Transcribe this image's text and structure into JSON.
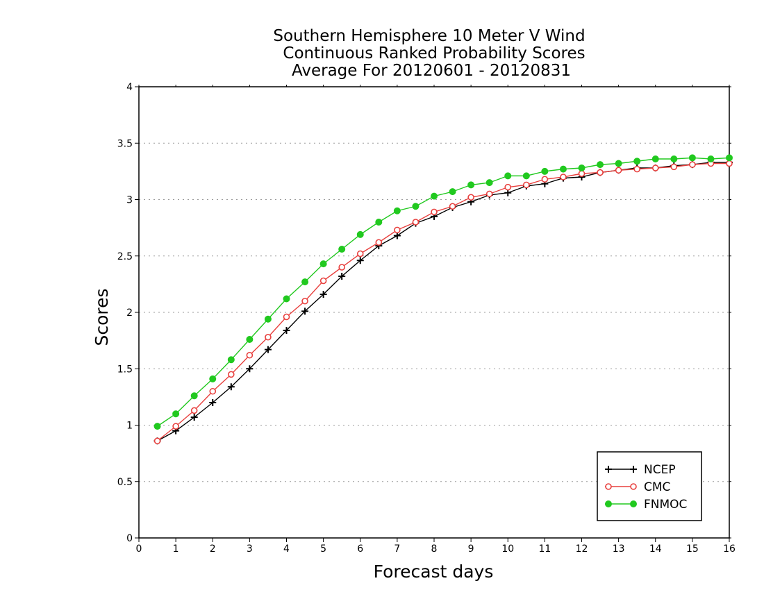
{
  "chart_data": {
    "type": "line",
    "title_lines": [
      "Southern Hemisphere 10 Meter V Wind",
      "Continuous Ranked Probability Scores",
      "Average For 20120601 - 20120831"
    ],
    "xlabel": "Forecast days",
    "ylabel": "Scores",
    "xlim": [
      0,
      16
    ],
    "ylim": [
      0,
      4
    ],
    "x_ticks": [
      "0",
      "1",
      "2",
      "3",
      "4",
      "5",
      "6",
      "7",
      "8",
      "9",
      "10",
      "11",
      "12",
      "13",
      "14",
      "15",
      "16"
    ],
    "y_ticks": [
      "0",
      "0.5",
      "1",
      "1.5",
      "2",
      "2.5",
      "3",
      "3.5",
      "4"
    ],
    "grid": "horizontal dotted",
    "legend_position": "bottom-right",
    "x": [
      0.5,
      1,
      1.5,
      2,
      2.5,
      3,
      3.5,
      4,
      4.5,
      5,
      5.5,
      6,
      6.5,
      7,
      7.5,
      8,
      8.5,
      9,
      9.5,
      10,
      10.5,
      11,
      11.5,
      12,
      12.5,
      13,
      13.5,
      14,
      14.5,
      15,
      15.5,
      16
    ],
    "series": [
      {
        "name": "NCEP",
        "color": "#000000",
        "marker": "plus",
        "values": [
          0.86,
          0.95,
          1.07,
          1.2,
          1.34,
          1.5,
          1.67,
          1.84,
          2.01,
          2.16,
          2.32,
          2.46,
          2.59,
          2.68,
          2.79,
          2.85,
          2.93,
          2.98,
          3.04,
          3.06,
          3.12,
          3.14,
          3.19,
          3.2,
          3.24,
          3.26,
          3.28,
          3.28,
          3.3,
          3.31,
          3.33,
          3.33
        ]
      },
      {
        "name": "CMC",
        "color": "#e8403e",
        "marker": "open-circle",
        "values": [
          0.86,
          0.99,
          1.13,
          1.3,
          1.45,
          1.62,
          1.78,
          1.96,
          2.1,
          2.28,
          2.4,
          2.52,
          2.62,
          2.73,
          2.8,
          2.89,
          2.94,
          3.02,
          3.05,
          3.11,
          3.13,
          3.18,
          3.2,
          3.23,
          3.24,
          3.26,
          3.27,
          3.28,
          3.29,
          3.31,
          3.32,
          3.32
        ]
      },
      {
        "name": "FNMOC",
        "color": "#21c91f",
        "marker": "filled-circle",
        "values": [
          0.99,
          1.1,
          1.26,
          1.41,
          1.58,
          1.76,
          1.94,
          2.12,
          2.27,
          2.43,
          2.56,
          2.69,
          2.8,
          2.9,
          2.94,
          3.03,
          3.07,
          3.13,
          3.15,
          3.21,
          3.21,
          3.25,
          3.27,
          3.28,
          3.31,
          3.32,
          3.34,
          3.36,
          3.36,
          3.37,
          3.36,
          3.37
        ]
      }
    ]
  }
}
